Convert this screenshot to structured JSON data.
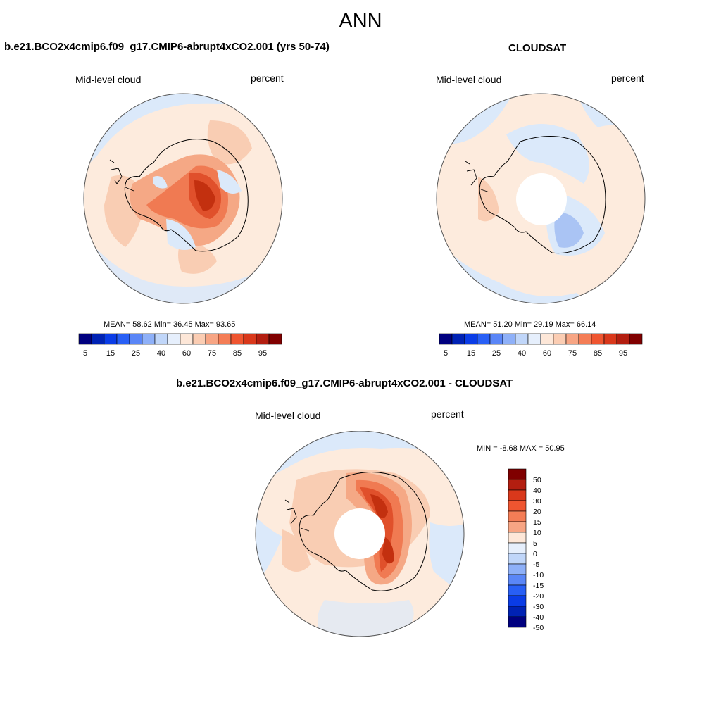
{
  "figure": {
    "title": "ANN"
  },
  "panels": [
    {
      "title": "b.e21.BCO2x4cmip6.f09_g17.CMIP6-abrupt4xCO2.001 (yrs 50-74)",
      "left_label": "Mid-level cloud",
      "right_label": "percent",
      "stats": "MEAN=  58.62  Min=  36.45  Max=  93.65",
      "mean": 58.62,
      "min": 36.45,
      "max": 93.65
    },
    {
      "title": "CLOUDSAT",
      "left_label": "Mid-level cloud",
      "right_label": "percent",
      "stats": "MEAN=  51.20  Min=  29.19  Max=  66.14",
      "mean": 51.2,
      "min": 29.19,
      "max": 66.14
    },
    {
      "title": "b.e21.BCO2x4cmip6.f09_g17.CMIP6-abrupt4xCO2.001 - CLOUDSAT",
      "left_label": "Mid-level cloud",
      "right_label": "percent",
      "stats": "MIN =  -8.68 MAX =  50.95",
      "min": -8.68,
      "max": 50.95
    }
  ],
  "colorbar_abs": {
    "colors": [
      "#00007f",
      "#0022b4",
      "#0a3ce6",
      "#285ff5",
      "#5a86f7",
      "#8eb0f8",
      "#c0d6f9",
      "#e6effc",
      "#fde7d8",
      "#fbcdb3",
      "#f7a584",
      "#f47d56",
      "#ef5530",
      "#d9381b",
      "#b31e10",
      "#800000"
    ],
    "tick_labels": [
      "5",
      "15",
      "25",
      "40",
      "60",
      "75",
      "85",
      "95"
    ]
  },
  "colorbar_diff": {
    "colors": [
      "#800000",
      "#b31e10",
      "#d9381b",
      "#ef5530",
      "#f47d56",
      "#f7a584",
      "#fde7d8",
      "#e6effc",
      "#c0d6f9",
      "#8eb0f8",
      "#5a86f7",
      "#285ff5",
      "#0a3ce6",
      "#0022b4",
      "#00007f"
    ],
    "tick_labels": [
      "50",
      "40",
      "30",
      "20",
      "15",
      "10",
      "5",
      "0",
      "-5",
      "-10",
      "-15",
      "-20",
      "-30",
      "-40",
      "-50"
    ]
  },
  "map_colors": {
    "ocean_light_blue": "#dbe9fa",
    "light_peach": "#fdebdd",
    "peach": "#f9cdb3",
    "salmon": "#f5a885",
    "orange": "#f07a52",
    "red": "#e0502b",
    "dark_red": "#c3300f",
    "mid_blue": "#aac4f4",
    "coast": "#000000",
    "no_data": "#ffffff"
  }
}
